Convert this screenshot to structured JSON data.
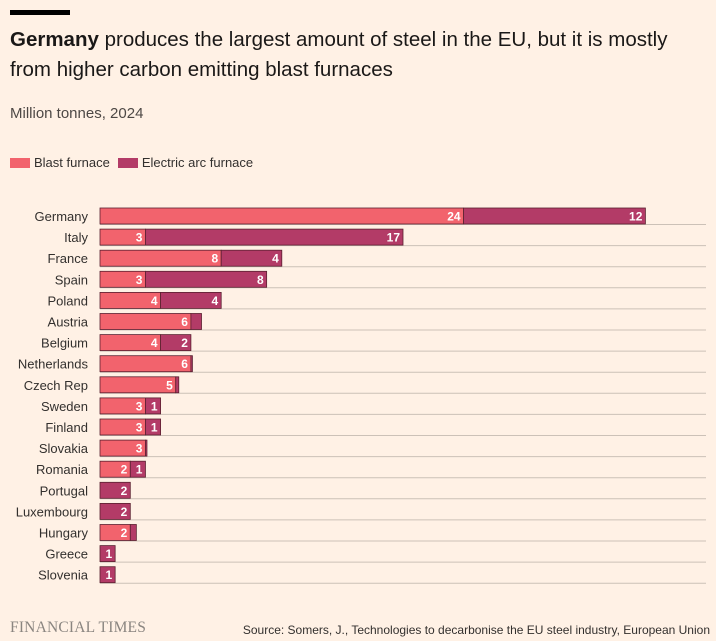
{
  "header": {
    "title_bold": "Germany",
    "title_rest": " produces the largest amount of steel in the EU, but it is mostly from higher carbon emitting blast furnaces",
    "subtitle": "Million tonnes, 2024"
  },
  "legend": [
    {
      "label": "Blast furnace",
      "color": "#f2636d"
    },
    {
      "label": "Electric arc furnace",
      "color": "#b33b67"
    }
  ],
  "chart_data": {
    "type": "bar",
    "orientation": "horizontal",
    "stacked": true,
    "categories": [
      "Germany",
      "Italy",
      "France",
      "Spain",
      "Poland",
      "Austria",
      "Belgium",
      "Netherlands",
      "Czech Rep",
      "Sweden",
      "Finland",
      "Slovakia",
      "Romania",
      "Portugal",
      "Luxembourg",
      "Hungary",
      "Greece",
      "Slovenia"
    ],
    "series": [
      {
        "name": "Blast furnace",
        "color": "#f2636d",
        "values": [
          24,
          3,
          8,
          3,
          4,
          6,
          4,
          6,
          5,
          3,
          3,
          3,
          2,
          0,
          0,
          2,
          0,
          0
        ],
        "labels": [
          "24",
          "3",
          "8",
          "3",
          "4",
          "6",
          "4",
          "6",
          "5",
          "3",
          "3",
          "3",
          "2",
          "",
          "",
          "2",
          "",
          ""
        ]
      },
      {
        "name": "Electric arc furnace",
        "color": "#b33b67",
        "values": [
          12,
          17,
          4,
          8,
          4,
          0.7,
          2,
          0.1,
          0.2,
          1,
          1,
          0.1,
          1,
          2,
          2,
          0.4,
          1,
          1
        ],
        "labels": [
          "12",
          "17",
          "4",
          "8",
          "4",
          "",
          "2",
          "",
          "",
          "1",
          "1",
          "",
          "1",
          "2",
          "2",
          "",
          "1",
          "1"
        ]
      }
    ],
    "xlim": [
      0,
      40
    ],
    "gridlines": "horizontal"
  },
  "footer": {
    "logo": "FINANCIAL TIMES",
    "source": "Source: Somers, J., Technologies to decarbonise the EU steel industry, European Union"
  }
}
